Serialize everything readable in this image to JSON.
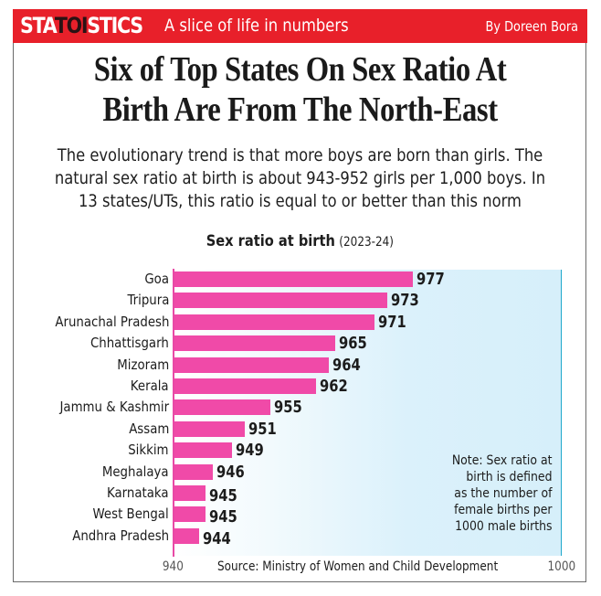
{
  "banner": {
    "brand_prefix": "STA",
    "brand_highlight": "TOI",
    "brand_suffix": "STICS",
    "tagline": "A slice of life in numbers",
    "byline": "By Doreen Bora"
  },
  "headline": {
    "lines": [
      "Six of Top States On Sex Ratio At",
      "Birth Are From The North-East"
    ]
  },
  "subtext": {
    "lines": [
      "The evolutionary trend is that more boys are born than girls. The",
      "natural sex ratio at birth is about 943-952 girls per 1,000 boys. In",
      "13 states/UTs, this ratio is equal to or better than this norm"
    ]
  },
  "colors": {
    "banner": "#e8202a",
    "bar": "#f04aa8",
    "axis": "#e84aa6",
    "plot_edge": "#1fa8cc"
  },
  "chart_data": {
    "type": "bar",
    "orientation": "horizontal",
    "title": "Sex ratio at birth",
    "subtitle": "(2023-24)",
    "categories": [
      "Goa",
      "Tripura",
      "Arunachal Pradesh",
      "Chhattisgarh",
      "Mizoram",
      "Kerala",
      "Jammu & Kashmir",
      "Assam",
      "Sikkim",
      "Meghalaya",
      "Karnataka",
      "West Bengal",
      "Andhra Pradesh"
    ],
    "values": [
      977,
      973,
      971,
      965,
      964,
      962,
      955,
      951,
      949,
      946,
      945,
      945,
      944
    ],
    "xlim": [
      940,
      1000
    ],
    "x_ticks": [
      "940",
      "1000"
    ],
    "xlabel": "",
    "ylabel": "",
    "grid": false,
    "source": "Source: Ministry of Women and Child Development",
    "note_lines": [
      "Note: Sex ratio at",
      "birth is defined",
      "as the number of",
      "female births per",
      "1000 male births"
    ]
  }
}
